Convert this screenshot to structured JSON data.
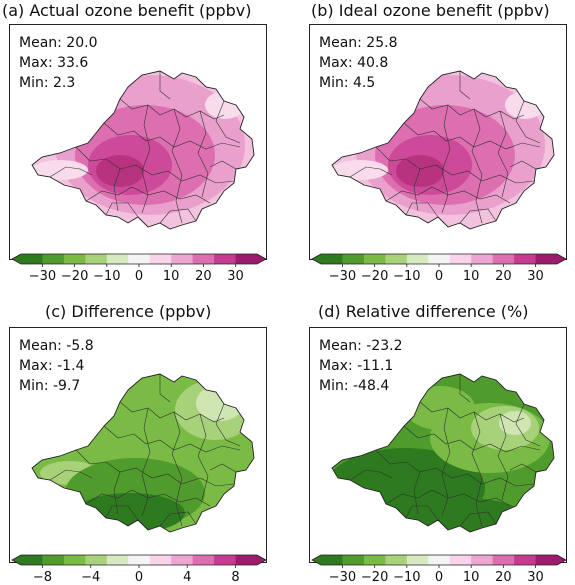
{
  "panels": [
    {
      "title": "(a) Actual ozone benefit (ppbv)",
      "stats": [
        "Mean: 20.0",
        "Max: 33.6",
        "Min: 2.3"
      ],
      "palette": "pink",
      "colorbar_ticks": [
        "−30",
        "−20",
        "−10",
        "0",
        "10",
        "20",
        "30"
      ],
      "colorbar_colors": [
        "#2e7a1e",
        "#4f9b2c",
        "#79bb45",
        "#a8d27a",
        "#d6ebbf",
        "#f4f4f4",
        "#f8d3ea",
        "#eda5d1",
        "#dd6fb1",
        "#c63b8f",
        "#9c1b6d"
      ]
    },
    {
      "title": "(b) Ideal ozone benefit (ppbv)",
      "stats": [
        "Mean: 25.8",
        "Max: 40.8",
        "Min: 4.5"
      ],
      "palette": "pink",
      "colorbar_ticks": [
        "−30",
        "−20",
        "−10",
        "0",
        "10",
        "20",
        "30"
      ],
      "colorbar_colors": [
        "#2e7a1e",
        "#4f9b2c",
        "#79bb45",
        "#a8d27a",
        "#d6ebbf",
        "#f4f4f4",
        "#f8d3ea",
        "#eda5d1",
        "#dd6fb1",
        "#c63b8f",
        "#9c1b6d"
      ]
    },
    {
      "title": "(c) Difference (ppbv)",
      "stats": [
        "Mean: -5.8",
        "Max: -1.4",
        "Min: -9.7"
      ],
      "palette": "green",
      "colorbar_ticks": [
        "−8",
        "−4",
        "0",
        "4",
        "8"
      ],
      "colorbar_colors": [
        "#2e7a1e",
        "#4f9b2c",
        "#79bb45",
        "#a8d27a",
        "#d6ebbf",
        "#f4f4f4",
        "#f8d3ea",
        "#eda5d1",
        "#dd6fb1",
        "#c63b8f",
        "#9c1b6d"
      ]
    },
    {
      "title": "(d) Relative difference (%)",
      "stats": [
        "Mean: -23.2",
        "Max: -11.1",
        "Min: -48.4"
      ],
      "palette": "darkgreen",
      "colorbar_ticks": [
        "−30",
        "−20",
        "−10",
        "0",
        "10",
        "20",
        "30"
      ],
      "colorbar_colors": [
        "#2e7a1e",
        "#4f9b2c",
        "#79bb45",
        "#a8d27a",
        "#d6ebbf",
        "#f4f4f4",
        "#f8d3ea",
        "#eda5d1",
        "#dd6fb1",
        "#c63b8f",
        "#9c1b6d"
      ]
    }
  ]
}
